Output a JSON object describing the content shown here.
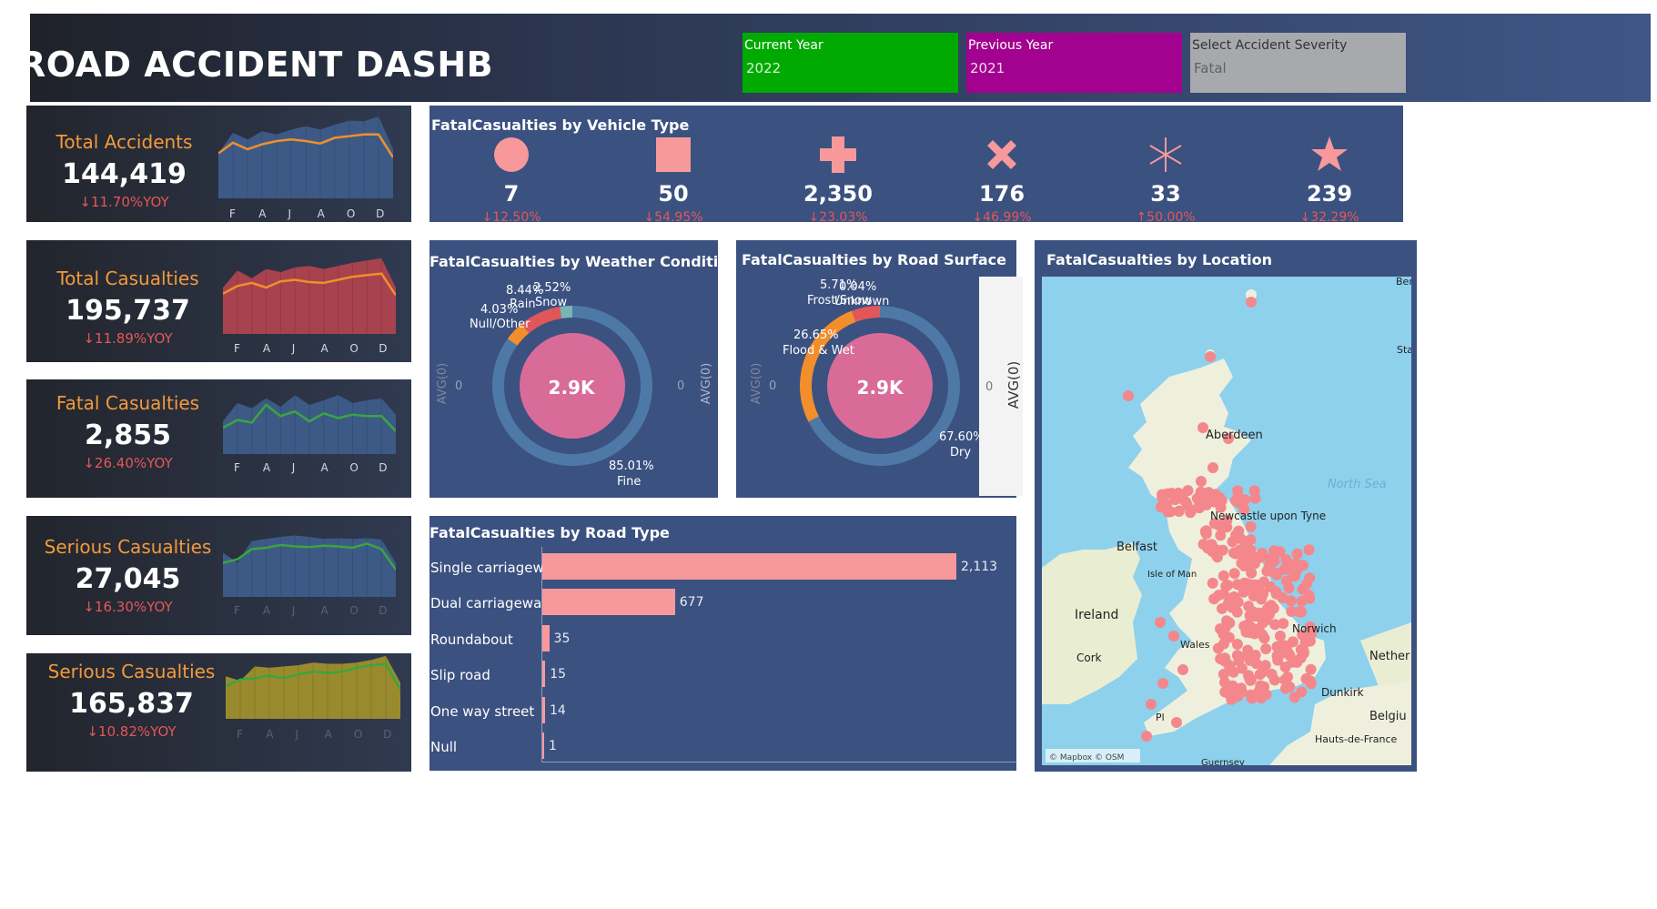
{
  "header": {
    "title": "ROAD ACCIDENT DASHBOARD",
    "filters": [
      {
        "label": "Current Year",
        "value": "2022",
        "color": "#00aa00"
      },
      {
        "label": "Previous Year",
        "value": "2021",
        "color": "#a3018f"
      },
      {
        "label": "Select Accident Severity",
        "value": "Fatal",
        "color": "#a7a9ad"
      }
    ]
  },
  "kpis": [
    {
      "title": "Total Accidents",
      "value": "144,419",
      "yoy": "↓11.70%YOY",
      "months": [
        "F",
        "A",
        "J",
        "A",
        "O",
        "D"
      ],
      "area_color": "#3d5a86",
      "line_color": "#f08f2b",
      "fill_series": [
        0.55,
        0.8,
        0.72,
        0.82,
        0.78,
        0.84,
        0.88,
        0.84,
        0.9,
        0.95,
        0.94,
        1.0,
        0.6
      ],
      "line_series": [
        0.55,
        0.68,
        0.6,
        0.66,
        0.7,
        0.72,
        0.7,
        0.67,
        0.74,
        0.76,
        0.78,
        0.78,
        0.5
      ]
    },
    {
      "title": "Total Casualties",
      "value": "195,737",
      "yoy": "↓11.89%YOY",
      "months": [
        "F",
        "A",
        "J",
        "A",
        "O",
        "D"
      ],
      "area_color": "#a8424f",
      "line_color": "#f08f2b",
      "fill_series": [
        0.6,
        0.82,
        0.72,
        0.84,
        0.8,
        0.86,
        0.88,
        0.84,
        0.88,
        0.92,
        0.95,
        0.98,
        0.6
      ],
      "line_series": [
        0.52,
        0.62,
        0.66,
        0.6,
        0.68,
        0.7,
        0.67,
        0.66,
        0.7,
        0.74,
        0.76,
        0.78,
        0.5
      ]
    },
    {
      "title": "Fatal Casualties",
      "value": "2,855",
      "yoy": "↓26.40%YOY",
      "months": [
        "F",
        "A",
        "J",
        "A",
        "O",
        "D"
      ],
      "area_color": "#3d5a86",
      "line_color": "#3aa53f",
      "fill_series": [
        0.5,
        0.78,
        0.7,
        0.85,
        0.72,
        0.9,
        0.75,
        0.82,
        0.9,
        0.78,
        0.82,
        0.85,
        0.6
      ],
      "line_series": [
        0.4,
        0.52,
        0.48,
        0.75,
        0.58,
        0.65,
        0.5,
        0.62,
        0.55,
        0.6,
        0.58,
        0.58,
        0.35
      ]
    },
    {
      "title": "Serious Casualties",
      "value": "27,045",
      "yoy": "↓16.30%YOY",
      "months": [
        "F",
        "A",
        "J",
        "A",
        "O",
        "D"
      ],
      "area_color": "#3d5a86",
      "line_color": "#3aa53f",
      "fill_series": [
        0.65,
        0.5,
        0.82,
        0.85,
        0.88,
        0.9,
        0.88,
        0.85,
        0.86,
        0.85,
        0.86,
        0.84,
        0.5
      ],
      "line_series": [
        0.5,
        0.55,
        0.7,
        0.72,
        0.76,
        0.74,
        0.73,
        0.75,
        0.74,
        0.72,
        0.78,
        0.7,
        0.4
      ]
    },
    {
      "title": "Serious Casualties",
      "value": "165,837",
      "yoy": "↓10.82%YOY",
      "months": [
        "F",
        "A",
        "J",
        "A",
        "O",
        "D"
      ],
      "area_color": "#9a8a2e",
      "line_color": "#3aa53f",
      "fill_series": [
        0.65,
        0.58,
        0.8,
        0.78,
        0.8,
        0.82,
        0.86,
        0.84,
        0.84,
        0.86,
        0.9,
        0.96,
        0.55
      ],
      "line_series": [
        0.5,
        0.6,
        0.62,
        0.66,
        0.62,
        0.68,
        0.72,
        0.7,
        0.72,
        0.78,
        0.82,
        0.84,
        0.45
      ]
    }
  ],
  "vehicle_panel": {
    "title": "FatalCasualties by Vehicle Type",
    "items": [
      {
        "icon": "circle-icon",
        "value": "7",
        "pct": "↓12.50%"
      },
      {
        "icon": "square-icon",
        "value": "50",
        "pct": "↓54.95%"
      },
      {
        "icon": "plus-icon",
        "value": "2,350",
        "pct": "↓23.03%"
      },
      {
        "icon": "x-icon",
        "value": "176",
        "pct": "↓46.99%"
      },
      {
        "icon": "asterisk-icon",
        "value": "33",
        "pct": "↑50.00%"
      },
      {
        "icon": "star-icon",
        "value": "239",
        "pct": "↓32.29%"
      }
    ]
  },
  "weather_panel": {
    "title": "FatalCasualties by Weather Condition",
    "center": "2.9K",
    "axis_label": "AVG(0)",
    "axis_zero": "0",
    "segments": [
      {
        "label": "Fine",
        "pct": "85.01%",
        "share": 0.8501,
        "color": "#4e79a7"
      },
      {
        "label": "Null/Other",
        "pct": "4.03%",
        "share": 0.0403,
        "color": "#f28e2b"
      },
      {
        "label": "Rain",
        "pct": "8.44%",
        "share": 0.0844,
        "color": "#e15759"
      },
      {
        "label": "Snow",
        "pct": "2.52%",
        "share": 0.0252,
        "color": "#76b7b2"
      }
    ]
  },
  "surface_panel": {
    "title": "FatalCasualties by Road Surface",
    "center": "2.9K",
    "axis_label": "AVG(0)",
    "axis_zero": "0",
    "segments": [
      {
        "label": "Dry",
        "pct": "67.60%",
        "share": 0.676,
        "color": "#4e79a7"
      },
      {
        "label": "Flood & Wet",
        "pct": "26.65%",
        "share": 0.2665,
        "color": "#f28e2b"
      },
      {
        "label": "Frost/Snow",
        "pct": "5.71%",
        "share": 0.0571,
        "color": "#e15759"
      },
      {
        "label": "Unknown",
        "pct": "0.04%",
        "share": 0.0004,
        "color": "#76b7b2"
      }
    ]
  },
  "road_type_panel": {
    "title": "FatalCasualties by Road Type",
    "rows": [
      {
        "label": "Single carriageway",
        "value": 2113,
        "text": "2,113"
      },
      {
        "label": "Dual carriageway",
        "value": 677,
        "text": "677"
      },
      {
        "label": "Roundabout",
        "value": 35,
        "text": "35"
      },
      {
        "label": "Slip road",
        "value": 15,
        "text": "15"
      },
      {
        "label": "One way street",
        "value": 14,
        "text": "14"
      },
      {
        "label": "Null",
        "value": 1,
        "text": "1"
      }
    ]
  },
  "map_panel": {
    "title": "FatalCasualties by Location",
    "labels": {
      "aberdeen": "Aberdeen",
      "newcastle": "Newcastle upon Tyne",
      "belfast": "Belfast",
      "isle_of_man": "Isle of Man",
      "ireland": "Ireland",
      "cork": "Cork",
      "wales": "Wales",
      "norwich": "Norwich",
      "dunkirk": "Dunkirk",
      "hauts": "Hauts-de-France",
      "north_sea": "North Sea",
      "nether": "Nether",
      "belgium": "Belgiu",
      "guernsey": "Guernsey",
      "ber": "Ber",
      "sta": "Sta",
      "plymouth": "Pl",
      "attribution": "© Mapbox © OSM"
    },
    "sea_color": "#8ed1ec",
    "land_color": "#eef0dd",
    "dot_color": "#f4878b"
  }
}
